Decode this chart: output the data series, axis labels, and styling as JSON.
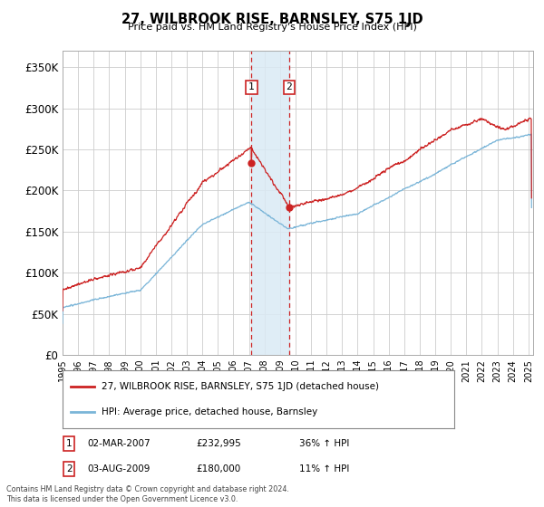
{
  "title": "27, WILBROOK RISE, BARNSLEY, S75 1JD",
  "subtitle": "Price paid vs. HM Land Registry's House Price Index (HPI)",
  "ylim": [
    0,
    370000
  ],
  "yticks": [
    0,
    50000,
    100000,
    150000,
    200000,
    250000,
    300000,
    350000
  ],
  "ytick_labels": [
    "£0",
    "£50K",
    "£100K",
    "£150K",
    "£200K",
    "£250K",
    "£300K",
    "£350K"
  ],
  "hpi_color": "#7ab5d8",
  "price_color": "#cc2222",
  "marker1_x": 2007.167,
  "marker2_x": 2009.583,
  "marker1_price": 232995,
  "marker2_price": 180000,
  "marker1_date": "02-MAR-2007",
  "marker2_date": "03-AUG-2009",
  "marker1_hpi_pct": "36%",
  "marker2_hpi_pct": "11%",
  "legend_label_price": "27, WILBROOK RISE, BARNSLEY, S75 1JD (detached house)",
  "legend_label_hpi": "HPI: Average price, detached house, Barnsley",
  "footnote": "Contains HM Land Registry data © Crown copyright and database right 2024.\nThis data is licensed under the Open Government Licence v3.0.",
  "background_color": "#ffffff",
  "grid_color": "#cccccc",
  "highlight_fill": "#daeaf5"
}
